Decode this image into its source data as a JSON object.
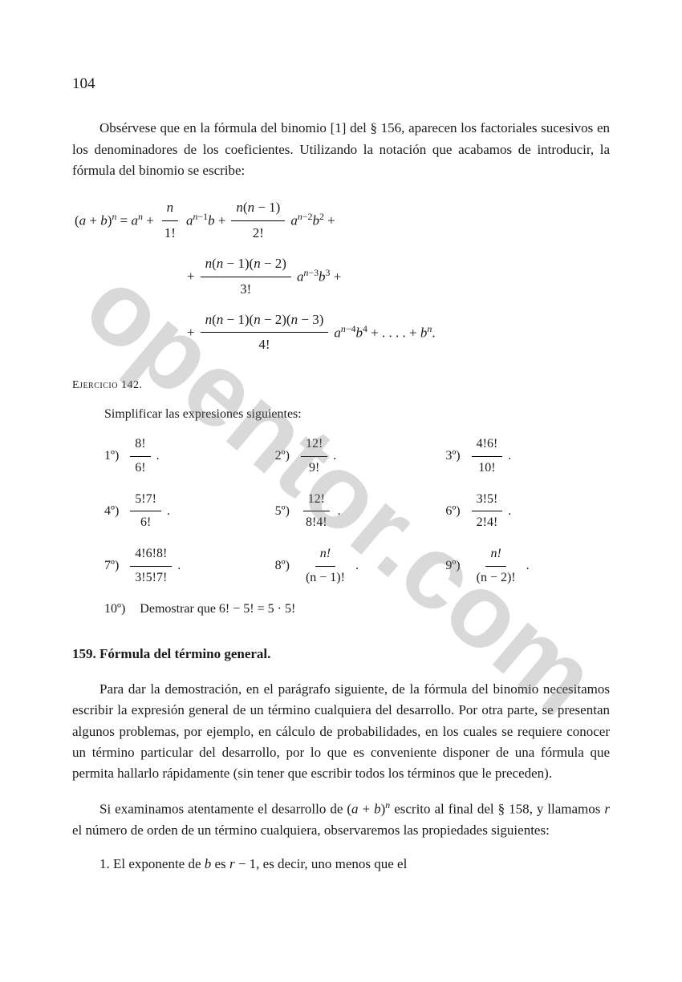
{
  "page": "104",
  "p1": "Obsérvese que en la fórmula del binomio [1] del § 156, aparecen los factoriales sucesivos en los denominadores de los coeficientes. Utilizando la notación que acabamos de introducir, la fórmula del binomio se escribe:",
  "ex_head": "Ejercicio 142.",
  "ex_sub": "Simplificar las expresiones siguientes:",
  "ex": {
    "i1": {
      "lab": "1º)",
      "num": "8!",
      "den": "6!"
    },
    "i2": {
      "lab": "2º)",
      "num": "12!",
      "den": "9!"
    },
    "i3": {
      "lab": "3º)",
      "num": "4!6!",
      "den": "10!"
    },
    "i4": {
      "lab": "4º)",
      "num": "5!7!",
      "den": "6!"
    },
    "i5": {
      "lab": "5º)",
      "num": "12!",
      "den": "8!4!"
    },
    "i6": {
      "lab": "6º)",
      "num": "3!5!",
      "den": "2!4!"
    },
    "i7": {
      "lab": "7º)",
      "num": "4!6!8!",
      "den": "3!5!7!"
    },
    "i8": {
      "lab": "8º)",
      "num": "n!",
      "den": "(n − 1)!"
    },
    "i9": {
      "lab": "9º)",
      "num": "n!",
      "den": "(n − 2)!"
    },
    "i10": {
      "lab": "10º)",
      "txt": "Demostrar que  6! − 5! = 5 · 5!"
    }
  },
  "sect": "159.  Fórmula del término general.",
  "p2": "Para dar la demostración, en el parágrafo siguiente, de la fórmula del binomio necesitamos escribir la expresión general de un término cualquiera del desarrollo. Por otra parte, se presentan algunos problemas, por ejemplo, en cálculo de probabilidades, en los cuales se requiere conocer un término particular del desarrollo, por lo que es conveniente disponer de una fórmula que permita hallarlo rápidamente (sin tener que escribir todos los términos que le preceden).",
  "p3_a": "Si examinamos atentamente el desarrollo de  (",
  "p3_b": " escrito al final del § 158, y llamamos ",
  "p3_c": " el número de orden de un término cualquiera, observaremos las propiedades siguientes:",
  "p4_a": "1.  El exponente de ",
  "p4_b": " es ",
  "p4_c": " − 1, es decir, uno menos que el",
  "watermark": "opentor.com",
  "colors": {
    "text": "#1a1a1a",
    "bg": "#ffffff",
    "wm": "rgba(130,130,130,0.30)"
  }
}
